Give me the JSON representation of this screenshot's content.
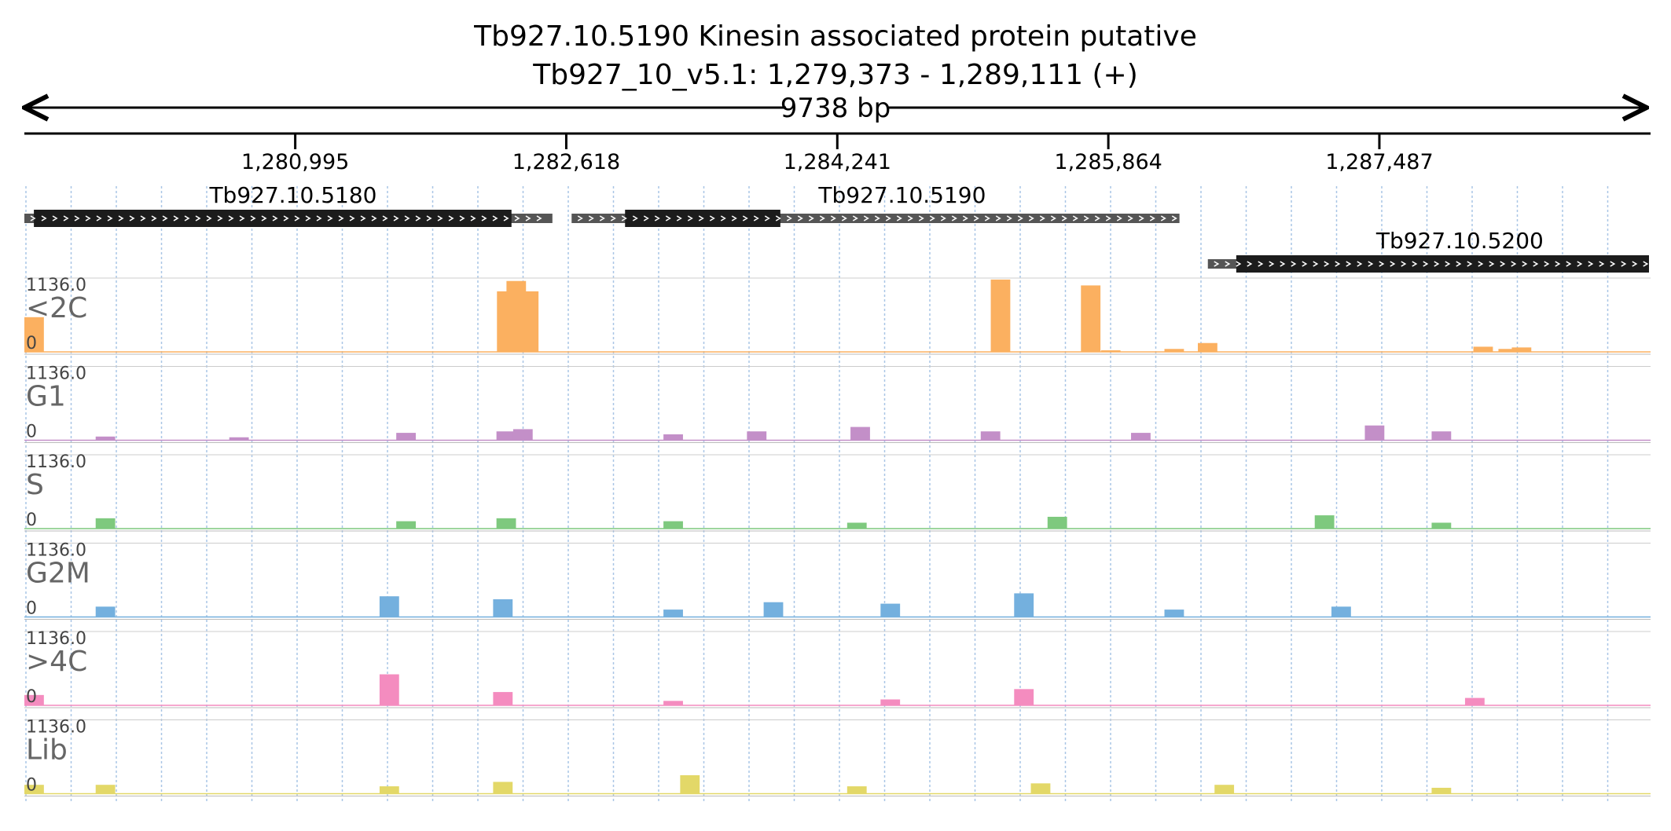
{
  "header": {
    "gene_title": "Tb927.10.5190  Kinesin associated protein  putative",
    "locus": "Tb927_10_v5.1: 1,279,373 - 1,289,111 (+)",
    "span": "9738 bp"
  },
  "region": {
    "start": 1279373,
    "end": 1289111
  },
  "ruler": {
    "ticks": [
      {
        "pos": 1280995,
        "label": "1,280,995"
      },
      {
        "pos": 1282618,
        "label": "1,282,618"
      },
      {
        "pos": 1284241,
        "label": "1,284,241"
      },
      {
        "pos": 1285864,
        "label": "1,285,864"
      },
      {
        "pos": 1287487,
        "label": "1,287,487"
      }
    ]
  },
  "genes": [
    {
      "id": "Tb927.10.5180",
      "strand": "+",
      "row": 0,
      "utr_start": 1279373,
      "utr_end": 1282535,
      "cds_start": 1279430,
      "cds_end": 1282290
    },
    {
      "id": "Tb927.10.5190",
      "strand": "+",
      "row": 0,
      "utr_start": 1282650,
      "utr_end": 1286290,
      "cds_start": 1282970,
      "cds_end": 1283900
    },
    {
      "id": "Tb927.10.5200",
      "strand": "+",
      "row": 1,
      "utr_start": 1286460,
      "utr_end": 1289111,
      "cds_start": 1286630,
      "cds_end": 1289111
    }
  ],
  "coverage_tracks": [
    {
      "name": "<2C",
      "max": "1136.0",
      "min": "0",
      "color": "#fbb060",
      "bins": [
        [
          1279373,
          0.04,
          0.47
        ],
        [
          1282203,
          0.32,
          0.82
        ],
        [
          1282260,
          0.1,
          0.96
        ],
        [
          1282290,
          0.0,
          0.35
        ],
        [
          1282335,
          0.02,
          0.82
        ],
        [
          1285160,
          0.32,
          0.98
        ],
        [
          1285700,
          0.25,
          0.9
        ],
        [
          1285820,
          0.02,
          0.02
        ],
        [
          1286200,
          0.02,
          0.04
        ],
        [
          1286400,
          0.04,
          0.12
        ],
        [
          1288050,
          0.03,
          0.07
        ],
        [
          1288200,
          0.03,
          0.04
        ],
        [
          1288280,
          0.03,
          0.06
        ]
      ]
    },
    {
      "name": "G1",
      "max": "1136.0",
      "min": "0",
      "color": "#c38fc8",
      "bins": [
        [
          1279800,
          0.02,
          0.05
        ],
        [
          1280600,
          0.02,
          0.04
        ],
        [
          1281600,
          0.08,
          0.1
        ],
        [
          1282200,
          0.1,
          0.12
        ],
        [
          1282300,
          0.08,
          0.15
        ],
        [
          1283200,
          0.05,
          0.08
        ],
        [
          1283700,
          0.08,
          0.12
        ],
        [
          1284320,
          0.12,
          0.18
        ],
        [
          1285100,
          0.08,
          0.12
        ],
        [
          1286000,
          0.05,
          0.1
        ],
        [
          1287400,
          0.08,
          0.2
        ],
        [
          1287800,
          0.05,
          0.12
        ]
      ]
    },
    {
      "name": "S",
      "max": "1136.0",
      "min": "0",
      "color": "#7ec97e",
      "bins": [
        [
          1279800,
          0.08,
          0.14
        ],
        [
          1281600,
          0.05,
          0.1
        ],
        [
          1282200,
          0.1,
          0.14
        ],
        [
          1283200,
          0.08,
          0.1
        ],
        [
          1284300,
          0.05,
          0.08
        ],
        [
          1285500,
          0.1,
          0.16
        ],
        [
          1287100,
          0.08,
          0.18
        ],
        [
          1287800,
          0.05,
          0.08
        ]
      ]
    },
    {
      "name": "G2M",
      "max": "1136.0",
      "min": "0",
      "color": "#74b0de",
      "bins": [
        [
          1279800,
          0.12,
          0.14
        ],
        [
          1281500,
          0.2,
          0.28
        ],
        [
          1282180,
          0.22,
          0.24
        ],
        [
          1283200,
          0.08,
          0.1
        ],
        [
          1283800,
          0.18,
          0.2
        ],
        [
          1284500,
          0.16,
          0.18
        ],
        [
          1285300,
          0.22,
          0.32
        ],
        [
          1286200,
          0.08,
          0.1
        ],
        [
          1287200,
          0.06,
          0.14
        ]
      ]
    },
    {
      "name": ">4C",
      "max": "1136.0",
      "min": "0",
      "color": "#f48cbf",
      "bins": [
        [
          1279373,
          0.04,
          0.14
        ],
        [
          1281500,
          0.3,
          0.42
        ],
        [
          1282180,
          0.15,
          0.18
        ],
        [
          1283200,
          0.04,
          0.06
        ],
        [
          1284500,
          0.05,
          0.08
        ],
        [
          1285300,
          0.15,
          0.22
        ],
        [
          1288000,
          0.06,
          0.1
        ]
      ]
    },
    {
      "name": "Lib",
      "max": "1136.0",
      "min": "0",
      "color": "#e3d868",
      "bins": [
        [
          1279373,
          0.04,
          0.12
        ],
        [
          1279800,
          0.08,
          0.12
        ],
        [
          1281500,
          0.06,
          0.1
        ],
        [
          1282180,
          0.12,
          0.16
        ],
        [
          1283300,
          0.2,
          0.25
        ],
        [
          1284300,
          0.08,
          0.1
        ],
        [
          1285400,
          0.1,
          0.14
        ],
        [
          1286500,
          0.08,
          0.12
        ],
        [
          1287800,
          0.06,
          0.08
        ]
      ]
    }
  ]
}
